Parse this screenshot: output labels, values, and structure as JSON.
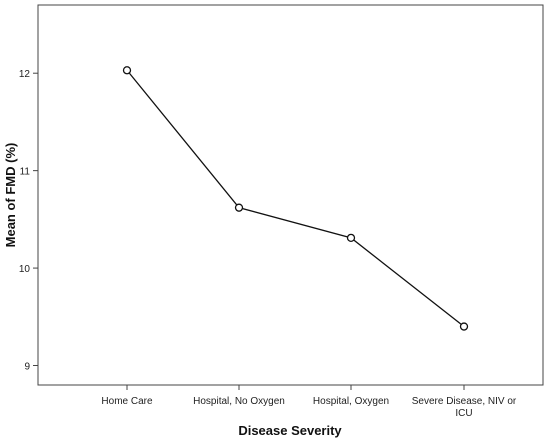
{
  "chart_data": {
    "type": "line",
    "title": "",
    "xlabel": "Disease Severity",
    "ylabel": "Mean of FMD (%)",
    "categories": [
      "Home Care",
      "Hospital, No Oxygen",
      "Hospital, Oxygen",
      "Severe Disease, NIV or ICU"
    ],
    "category_lines": [
      [
        "Home Care"
      ],
      [
        "Hospital, No Oxygen"
      ],
      [
        "Hospital, Oxygen"
      ],
      [
        "Severe Disease, NIV or",
        "ICU"
      ]
    ],
    "series": [
      {
        "values": [
          12.03,
          10.62,
          10.31,
          9.4
        ]
      }
    ],
    "ylim": [
      8.8,
      12.7
    ],
    "yticks": [
      9,
      10,
      11,
      12
    ],
    "grid": false,
    "marker": "open-circle",
    "colors": {
      "line": "#111111",
      "frame": "#444444",
      "background": "#ffffff"
    }
  }
}
